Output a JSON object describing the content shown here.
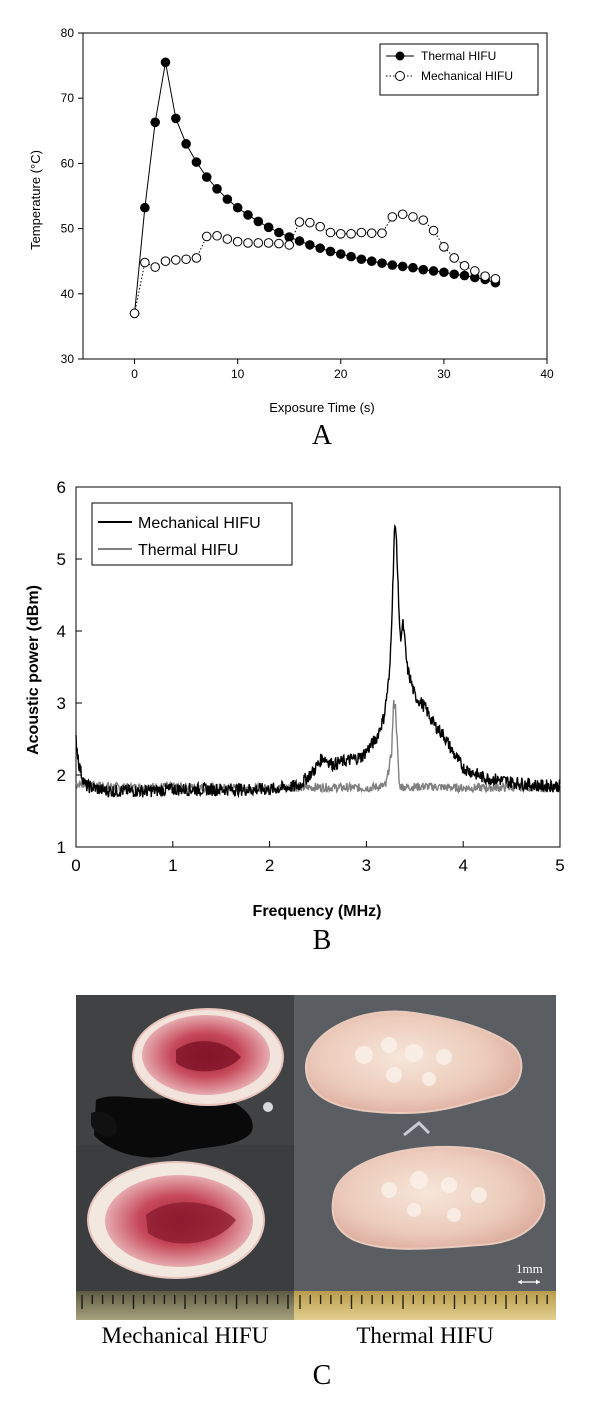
{
  "chart_data": [
    {
      "type": "scatter",
      "panel_label": "A",
      "xlabel": "Exposure Time (s)",
      "ylabel": "Temperature (°C)",
      "xlim": [
        -5,
        40
      ],
      "ylim": [
        30,
        80
      ],
      "x_ticks": [
        "0",
        "10",
        "20",
        "30",
        "40"
      ],
      "y_ticks": [
        "30",
        "40",
        "50",
        "60",
        "70",
        "80"
      ],
      "grid": false,
      "legend_position": "top-right",
      "series": [
        {
          "name": "Thermal HIFU",
          "marker": "filled-circle",
          "line": "solid",
          "color": "#000000",
          "x": [
            0,
            1,
            2,
            3,
            4,
            5,
            6,
            7,
            8,
            9,
            10,
            11,
            12,
            13,
            14,
            15,
            16,
            17,
            18,
            19,
            20,
            21,
            22,
            23,
            24,
            25,
            26,
            27,
            28,
            29,
            30,
            31,
            32,
            33,
            34,
            35
          ],
          "y": [
            37,
            53.2,
            66.3,
            75.5,
            66.9,
            63.0,
            60.2,
            57.9,
            56.1,
            54.5,
            53.2,
            52.1,
            51.1,
            50.2,
            49.4,
            48.7,
            48.1,
            47.5,
            47.0,
            46.5,
            46.1,
            45.7,
            45.3,
            45.0,
            44.7,
            44.4,
            44.2,
            44.0,
            43.7,
            43.5,
            43.3,
            43.0,
            42.8,
            42.5,
            42.2,
            41.7
          ]
        },
        {
          "name": "Mechanical HIFU",
          "marker": "open-circle",
          "line": "dotted",
          "color": "#000000",
          "x": [
            0,
            1,
            2,
            3,
            4,
            5,
            6,
            7,
            8,
            9,
            10,
            11,
            12,
            13,
            14,
            15,
            16,
            17,
            18,
            19,
            20,
            21,
            22,
            23,
            24,
            25,
            26,
            27,
            28,
            29,
            30,
            31,
            32,
            33,
            34,
            35
          ],
          "y": [
            37,
            44.8,
            44.1,
            45.0,
            45.2,
            45.3,
            45.5,
            48.8,
            48.9,
            48.4,
            48.0,
            47.8,
            47.8,
            47.8,
            47.7,
            47.5,
            51.0,
            50.9,
            50.3,
            49.4,
            49.2,
            49.2,
            49.4,
            49.3,
            49.3,
            51.8,
            52.2,
            51.8,
            51.3,
            49.7,
            47.2,
            45.5,
            44.3,
            43.5,
            42.7,
            42.3
          ]
        }
      ]
    },
    {
      "type": "line",
      "panel_label": "B",
      "xlabel": "Frequency (MHz)",
      "ylabel": "Acoustic power (dBm)",
      "xlim": [
        0,
        5
      ],
      "ylim": [
        1,
        6
      ],
      "x_ticks": [
        "0",
        "1",
        "2",
        "3",
        "4",
        "5"
      ],
      "y_ticks": [
        "1",
        "2",
        "3",
        "4",
        "5",
        "6"
      ],
      "grid": false,
      "legend_position": "top-left",
      "series": [
        {
          "name": "Mechanical HIFU",
          "color": "#000000",
          "x": [
            0.0,
            0.03,
            0.06,
            0.1,
            0.3,
            0.5,
            0.8,
            1.0,
            1.5,
            2.0,
            2.3,
            2.45,
            2.55,
            2.65,
            2.8,
            2.95,
            3.1,
            3.18,
            3.24,
            3.27,
            3.29,
            3.31,
            3.33,
            3.35,
            3.38,
            3.42,
            3.5,
            3.6,
            3.7,
            3.8,
            3.9,
            4.0,
            4.2,
            4.5,
            4.8,
            5.0
          ],
          "y": [
            2.5,
            2.15,
            2.0,
            1.85,
            1.78,
            1.78,
            1.78,
            1.8,
            1.8,
            1.8,
            1.85,
            2.05,
            2.25,
            2.15,
            2.2,
            2.25,
            2.5,
            2.8,
            3.4,
            4.5,
            5.45,
            5.3,
            4.5,
            3.9,
            4.1,
            3.5,
            3.1,
            2.95,
            2.7,
            2.55,
            2.3,
            2.1,
            1.97,
            1.9,
            1.85,
            1.85
          ]
        },
        {
          "name": "Thermal HIFU",
          "color": "#808080",
          "x": [
            0.0,
            0.5,
            1.0,
            1.5,
            2.0,
            2.5,
            3.0,
            3.2,
            3.26,
            3.28,
            3.3,
            3.32,
            3.34,
            3.4,
            3.6,
            4.0,
            4.5,
            5.0
          ],
          "y": [
            1.88,
            1.83,
            1.84,
            1.82,
            1.82,
            1.83,
            1.82,
            1.85,
            2.3,
            3.0,
            2.95,
            2.4,
            1.85,
            1.83,
            1.84,
            1.82,
            1.83,
            1.83
          ]
        }
      ]
    }
  ],
  "panel_c": {
    "label": "C",
    "left_caption": "Mechanical HIFU",
    "right_caption": "Thermal HIFU",
    "scale_bar_label": "1mm"
  }
}
